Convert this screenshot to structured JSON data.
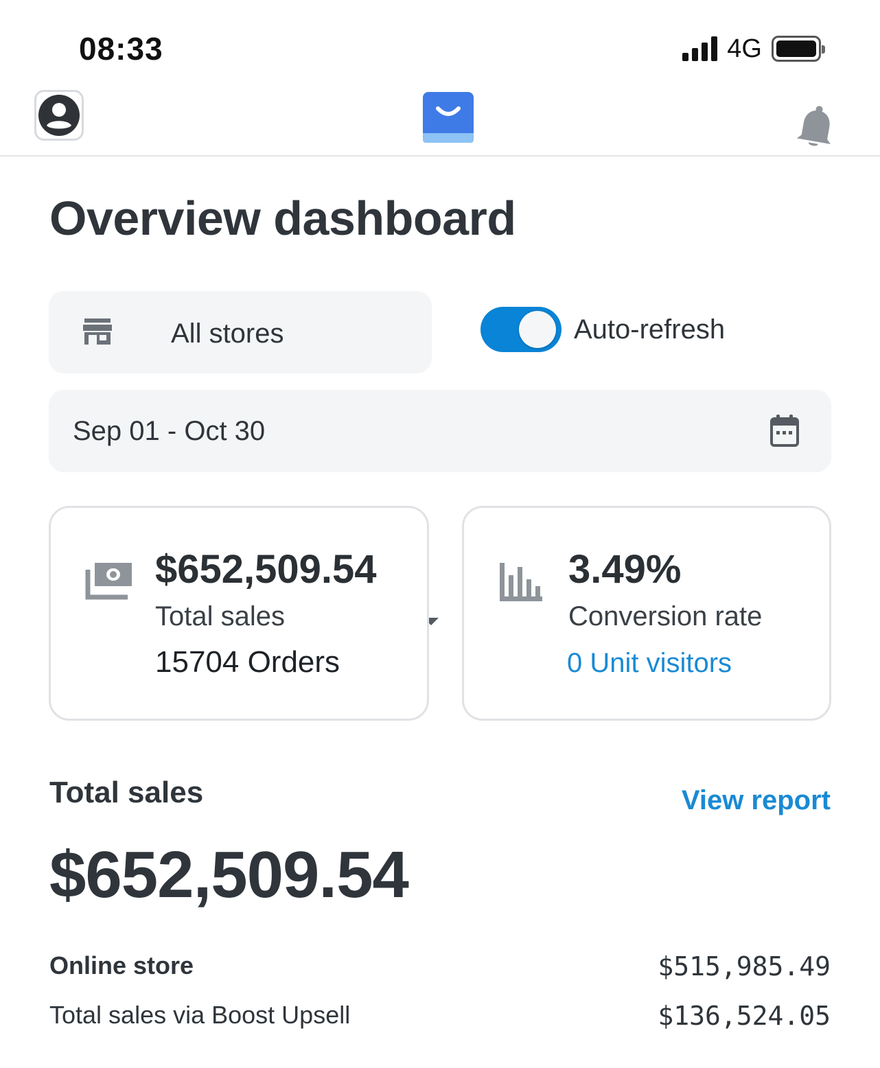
{
  "status_bar": {
    "time": "08:33",
    "network": "4G",
    "signal_bars": 4,
    "battery_level": 1.0
  },
  "header": {
    "icons": [
      "account-circle-icon",
      "shopping-bag-icon",
      "bell-icon"
    ]
  },
  "page": {
    "title": "Overview dashboard"
  },
  "filters": {
    "store_select": {
      "label": "All stores",
      "icon": "store-icon"
    },
    "auto_refresh": {
      "label": "Auto-refresh",
      "enabled": true
    },
    "date_range": {
      "value": "Sep 01 - Oct 30",
      "icon": "calendar-icon"
    }
  },
  "cards": {
    "sales": {
      "value": "$652,509.54",
      "label": "Total sales",
      "orders": "15704 Orders",
      "icon": "money-icon"
    },
    "conversion": {
      "value": "3.49%",
      "label": "Conversion rate",
      "visitors_link": "0 Unit visitors",
      "icon": "bar-chart-icon"
    }
  },
  "total_sales": {
    "title": "Total sales",
    "view_report": "View report",
    "amount": "$652,509.54",
    "rows": [
      {
        "label": "Online store",
        "value": "$515,985.49"
      },
      {
        "label": "Total sales via Boost Upsell",
        "value": "$136,524.05"
      }
    ]
  },
  "colors": {
    "accent": "#1a8ad4",
    "toggle_on": "#0a84d6",
    "logo_blue": "#3f7be6",
    "text_dark": "#2f353b",
    "field_bg": "#f4f5f6"
  }
}
